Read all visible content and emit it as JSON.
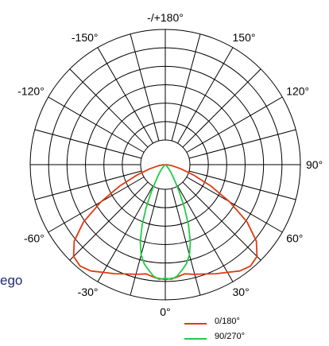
{
  "cut_text": "ego",
  "chart_data": {
    "type": "polar-line",
    "angle_labels": [
      {
        "label": "-/+180°",
        "angle": 180
      },
      {
        "label": "150°",
        "angle": 150
      },
      {
        "label": "120°",
        "angle": 120
      },
      {
        "label": "90°",
        "angle": 90
      },
      {
        "label": "60°",
        "angle": 60
      },
      {
        "label": "30°",
        "angle": 30
      },
      {
        "label": "0°",
        "angle": 0
      },
      {
        "label": "-30°",
        "angle": -30
      },
      {
        "label": "-60°",
        "angle": -60
      },
      {
        "label": "-120°",
        "angle": -120
      },
      {
        "label": "-150°",
        "angle": -150
      }
    ],
    "grid": {
      "rings": 6,
      "spoke_step_deg": 15,
      "center_zone": true
    },
    "series": [
      {
        "name": "0/180°",
        "color": "#e03a10",
        "angles": [
          0,
          5,
          10,
          15,
          20,
          25,
          30,
          35,
          40,
          45,
          50,
          55,
          60,
          65,
          70,
          75,
          80,
          85,
          90
        ],
        "values": [
          0.85,
          0.84,
          0.82,
          0.84,
          0.86,
          0.89,
          0.92,
          0.96,
          0.98,
          0.96,
          0.88,
          0.74,
          0.55,
          0.37,
          0.22,
          0.12,
          0.06,
          0.02,
          0
        ]
      },
      {
        "name": "90/270°",
        "color": "#22cc44",
        "angles": [
          0,
          3,
          6,
          9,
          12,
          15,
          18,
          21,
          24,
          27,
          30,
          35,
          40,
          50,
          60,
          90
        ],
        "values": [
          0.84,
          0.85,
          0.83,
          0.79,
          0.75,
          0.69,
          0.6,
          0.48,
          0.35,
          0.23,
          0.15,
          0.08,
          0.04,
          0.01,
          0,
          0
        ]
      }
    ],
    "legend": {
      "position": "bottom-right"
    }
  }
}
